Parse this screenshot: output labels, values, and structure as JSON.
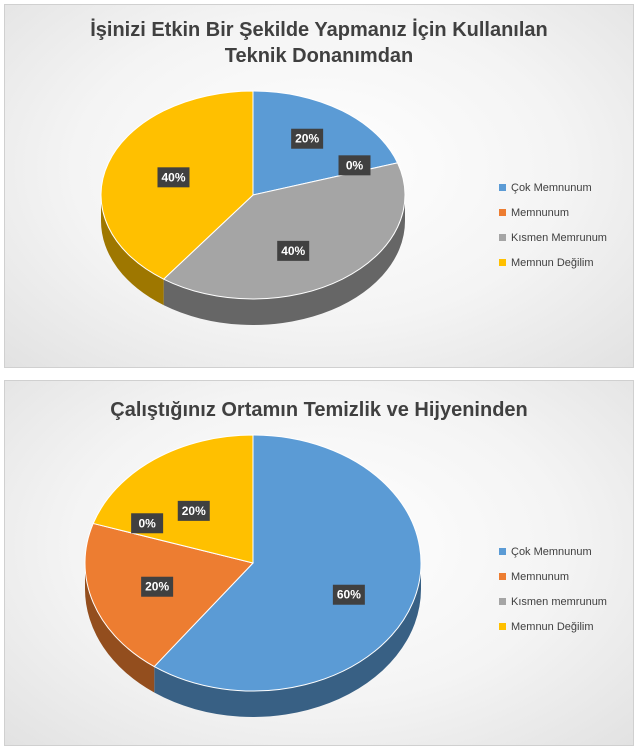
{
  "chart_data": [
    {
      "type": "pie",
      "title_lines": [
        "İşinizi Etkin Bir Şekilde Yapmanız İçin Kullanılan",
        "Teknik Donanımdan"
      ],
      "categories": [
        "Çok Memnunum",
        "Memnunum",
        "Kısmen Memrunum",
        "Memnun Değilim"
      ],
      "values": [
        20,
        0,
        40,
        40
      ],
      "data_labels": [
        "20%",
        "0%",
        "40%",
        "40%"
      ],
      "colors": [
        "#5b9bd5",
        "#ed7d31",
        "#a5a5a5",
        "#ffc000"
      ],
      "legend_position": "right"
    },
    {
      "type": "pie",
      "title_lines": [
        "Çalıştığınız Ortamın Temizlik ve Hijyeninden"
      ],
      "categories": [
        "Çok Memnunum",
        "Memnunum",
        "Kısmen memrunum",
        "Memnun Değilim"
      ],
      "values": [
        60,
        20,
        0,
        20
      ],
      "data_labels": [
        "60%",
        "20%",
        "0%",
        "20%"
      ],
      "colors": [
        "#5b9bd5",
        "#ed7d31",
        "#a5a5a5",
        "#ffc000"
      ],
      "legend_position": "right"
    }
  ]
}
